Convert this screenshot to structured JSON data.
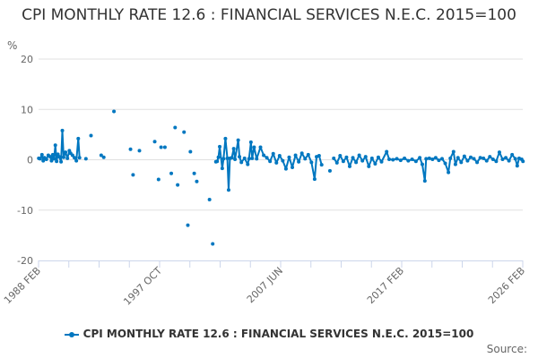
{
  "chart_data": {
    "type": "line",
    "title": "CPI MONTHLY RATE 12.6 : FINANCIAL SERVICES N.E.C. 2015=100",
    "ylabel": "%",
    "xlabel": "",
    "ylim": [
      -20,
      20
    ],
    "yticks": [
      20,
      10,
      0,
      -10,
      -20
    ],
    "xlim": [
      "1988 FEB",
      "2026 FEB"
    ],
    "xtick_labels": [
      "1988 FEB",
      "1997 OCT",
      "2007 JUN",
      "2017 FEB",
      "2026 FEB"
    ],
    "grid": true,
    "legend_position": "bottom",
    "color": "#0077c0",
    "series": [
      {
        "name": "CPI MONTHLY RATE 12.6 : FINANCIAL SERVICES N.E.C. 2015=100",
        "points": [
          [
            1988.1,
            0.3
          ],
          [
            1988.2,
            0.2
          ],
          [
            1988.35,
            1.0
          ],
          [
            1988.45,
            -0.2
          ],
          [
            1988.55,
            0.4
          ],
          [
            1988.7,
            0.1
          ],
          [
            1988.85,
            0.9
          ],
          [
            1989.0,
            0.6
          ],
          [
            1989.1,
            -0.2
          ],
          [
            1989.2,
            1.0
          ],
          [
            1989.3,
            0.2
          ],
          [
            1989.4,
            2.9
          ],
          [
            1989.5,
            -0.3
          ],
          [
            1989.6,
            1.1
          ],
          [
            1989.7,
            0.6
          ],
          [
            1989.85,
            -0.4
          ],
          [
            1989.95,
            5.8
          ],
          [
            1990.05,
            0.5
          ],
          [
            1990.2,
            1.5
          ],
          [
            1990.35,
            0.3
          ],
          [
            1990.5,
            1.8
          ],
          [
            1990.6,
            1.3
          ],
          [
            1990.75,
            0.9
          ],
          [
            1990.9,
            0.4
          ],
          [
            1991.05,
            -0.2
          ],
          [
            1991.2,
            4.2
          ],
          [
            1991.3,
            0.4
          ],
          null,
          [
            1991.8,
            0.2
          ],
          null,
          [
            1992.2,
            4.8
          ],
          null,
          [
            1993.0,
            0.9
          ],
          null,
          [
            1993.2,
            0.5
          ],
          null,
          [
            1994.0,
            9.6
          ],
          null,
          [
            1995.3,
            2.1
          ],
          null,
          [
            1995.5,
            -3.0
          ],
          null,
          [
            1996.0,
            1.8
          ],
          null,
          [
            1997.2,
            3.6
          ],
          null,
          [
            1997.5,
            -3.9
          ],
          null,
          [
            1997.7,
            2.5
          ],
          null,
          [
            1998.0,
            2.5
          ],
          null,
          [
            1998.5,
            -2.7
          ],
          null,
          [
            1998.8,
            6.4
          ],
          null,
          [
            1999.0,
            -5.0
          ],
          null,
          [
            1999.5,
            5.5
          ],
          null,
          [
            1999.8,
            -13.0
          ],
          null,
          [
            2000.0,
            1.6
          ],
          null,
          [
            2000.3,
            -2.7
          ],
          null,
          [
            2000.5,
            -4.3
          ],
          null,
          [
            2001.5,
            -7.9
          ],
          null,
          [
            2001.75,
            -16.7
          ],
          null,
          [
            2002.0,
            -0.4
          ],
          [
            2002.1,
            -0.3
          ],
          [
            2002.2,
            0.5
          ],
          [
            2002.3,
            2.6
          ],
          [
            2002.5,
            -1.7
          ],
          [
            2002.6,
            0.2
          ],
          [
            2002.75,
            4.2
          ],
          [
            2002.9,
            0.3
          ],
          [
            2003.0,
            -6.0
          ],
          [
            2003.1,
            0.3
          ],
          [
            2003.25,
            0.4
          ],
          [
            2003.4,
            2.2
          ],
          [
            2003.5,
            0.1
          ],
          [
            2003.75,
            3.9
          ],
          [
            2003.85,
            0.6
          ],
          [
            2004.0,
            -0.5
          ],
          [
            2004.25,
            0.3
          ],
          [
            2004.5,
            -0.9
          ],
          [
            2004.6,
            0.2
          ],
          [
            2004.75,
            3.5
          ],
          [
            2004.85,
            0.3
          ],
          [
            2005.0,
            2.5
          ],
          [
            2005.2,
            0.2
          ],
          [
            2005.5,
            2.5
          ],
          [
            2005.75,
            0.9
          ],
          [
            2006.0,
            0.4
          ],
          [
            2006.25,
            -0.3
          ],
          [
            2006.5,
            1.2
          ],
          [
            2006.75,
            -0.6
          ],
          [
            2007.0,
            0.8
          ],
          [
            2007.25,
            -0.2
          ],
          [
            2007.5,
            -1.8
          ],
          [
            2007.75,
            0.5
          ],
          [
            2008.0,
            -1.5
          ],
          [
            2008.25,
            0.9
          ],
          [
            2008.5,
            -0.4
          ],
          [
            2008.75,
            1.3
          ],
          [
            2009.0,
            0.2
          ],
          [
            2009.25,
            1.0
          ],
          [
            2009.5,
            -0.5
          ],
          [
            2009.75,
            -3.85
          ],
          [
            2009.9,
            0.6
          ],
          [
            2010.1,
            0.8
          ],
          [
            2010.3,
            -1.0
          ],
          null,
          [
            2010.95,
            -2.2
          ],
          null,
          [
            2011.25,
            0.3
          ],
          [
            2011.5,
            -0.6
          ],
          [
            2011.75,
            0.8
          ],
          [
            2012.0,
            -0.3
          ],
          [
            2012.25,
            0.5
          ],
          [
            2012.5,
            -1.3
          ],
          [
            2012.75,
            0.4
          ],
          [
            2013.0,
            -0.5
          ],
          [
            2013.25,
            0.9
          ],
          [
            2013.5,
            -0.2
          ],
          [
            2013.75,
            0.6
          ],
          [
            2014.0,
            -1.3
          ],
          [
            2014.25,
            0.3
          ],
          [
            2014.5,
            -0.8
          ],
          [
            2014.75,
            0.5
          ],
          [
            2015.0,
            -0.4
          ],
          [
            2015.4,
            1.6
          ],
          [
            2015.6,
            0.1
          ],
          [
            2015.9,
            0.0
          ],
          [
            2016.2,
            0.2
          ],
          [
            2016.5,
            -0.1
          ],
          [
            2016.8,
            0.3
          ],
          [
            2017.1,
            -0.2
          ],
          [
            2017.4,
            0.1
          ],
          [
            2017.7,
            -0.3
          ],
          [
            2018.0,
            0.4
          ],
          [
            2018.2,
            -0.9
          ],
          [
            2018.4,
            -4.2
          ],
          [
            2018.5,
            0.2
          ],
          [
            2018.75,
            0.3
          ],
          [
            2019.0,
            0.1
          ],
          [
            2019.25,
            0.4
          ],
          [
            2019.5,
            -0.1
          ],
          [
            2019.75,
            0.2
          ],
          [
            2020.0,
            -0.7
          ],
          [
            2020.25,
            -2.5
          ],
          [
            2020.4,
            0.3
          ],
          [
            2020.65,
            1.6
          ],
          [
            2020.8,
            -0.9
          ],
          [
            2021.0,
            0.4
          ],
          [
            2021.25,
            -0.5
          ],
          [
            2021.5,
            0.7
          ],
          [
            2021.75,
            -0.2
          ],
          [
            2022.0,
            0.5
          ],
          [
            2022.25,
            0.2
          ],
          [
            2022.5,
            -0.5
          ],
          [
            2022.75,
            0.4
          ],
          [
            2023.0,
            0.3
          ],
          [
            2023.25,
            -0.2
          ],
          [
            2023.5,
            0.6
          ],
          [
            2023.75,
            0.1
          ],
          [
            2024.0,
            -0.3
          ],
          [
            2024.25,
            1.5
          ],
          [
            2024.5,
            0.1
          ],
          [
            2024.75,
            0.4
          ],
          [
            2025.0,
            -0.2
          ],
          [
            2025.25,
            1.0
          ],
          [
            2025.5,
            0.2
          ],
          [
            2025.65,
            -1.2
          ],
          [
            2025.8,
            0.3
          ],
          [
            2026.0,
            0.1
          ],
          [
            2026.1,
            -0.3
          ]
        ]
      }
    ]
  },
  "legend": {
    "label": "CPI MONTHLY RATE 12.6 : FINANCIAL SERVICES N.E.C. 2015=100"
  },
  "source": "Source:"
}
